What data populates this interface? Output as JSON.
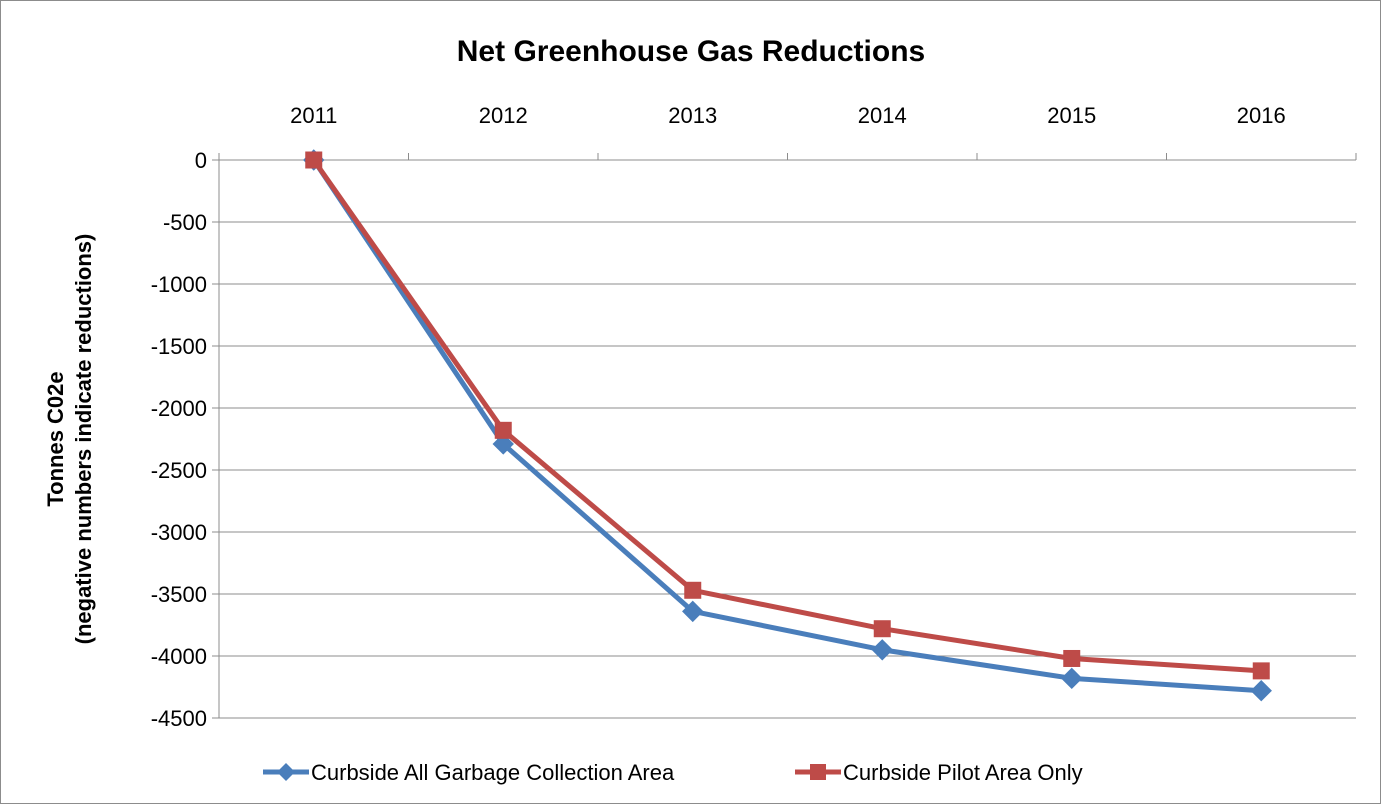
{
  "chart_data": {
    "type": "line",
    "title": "Net Greenhouse Gas Reductions",
    "ylabel": "Tonnes C02e",
    "ylabel_sub": "(negative numbers indicate reductions)",
    "x": [
      "2011",
      "2012",
      "2013",
      "2014",
      "2015",
      "2016"
    ],
    "y_ticks": [
      "0",
      "-500",
      "-1000",
      "-1500",
      "-2000",
      "-2500",
      "-3000",
      "-3500",
      "-4000",
      "-4500"
    ],
    "ylim": [
      -4500,
      0
    ],
    "x_axis_position": "top",
    "grid": true,
    "legend_position": "bottom",
    "series": [
      {
        "name": "Curbside All Garbage Collection Area",
        "color": "#4a7ebb",
        "marker": "diamond",
        "values": [
          0,
          -2290,
          -3640,
          -3950,
          -4180,
          -4280
        ]
      },
      {
        "name": "Curbside Pilot Area Only",
        "color": "#be4b48",
        "marker": "square",
        "values": [
          0,
          -2180,
          -3470,
          -3780,
          -4020,
          -4120
        ]
      }
    ]
  }
}
